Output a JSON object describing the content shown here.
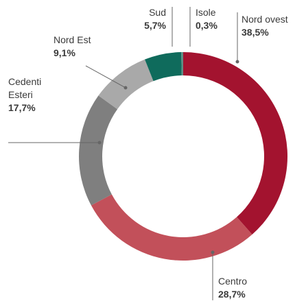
{
  "chart_data": {
    "type": "pie",
    "categories": [
      "Nord ovest",
      "Centro",
      "Cedenti Esteri",
      "Nord Est",
      "Sud",
      "Isole"
    ],
    "values": [
      38.5,
      28.7,
      17.7,
      9.1,
      5.7,
      0.3
    ],
    "value_labels": [
      "38,5%",
      "28,7%",
      "17,7%",
      "9,1%",
      "5,7%",
      "0,3%"
    ],
    "colors": [
      "#a3132f",
      "#c2505a",
      "#7f7f7f",
      "#a9a9a9",
      "#0f6b5c",
      "#5f8f85"
    ]
  }
}
